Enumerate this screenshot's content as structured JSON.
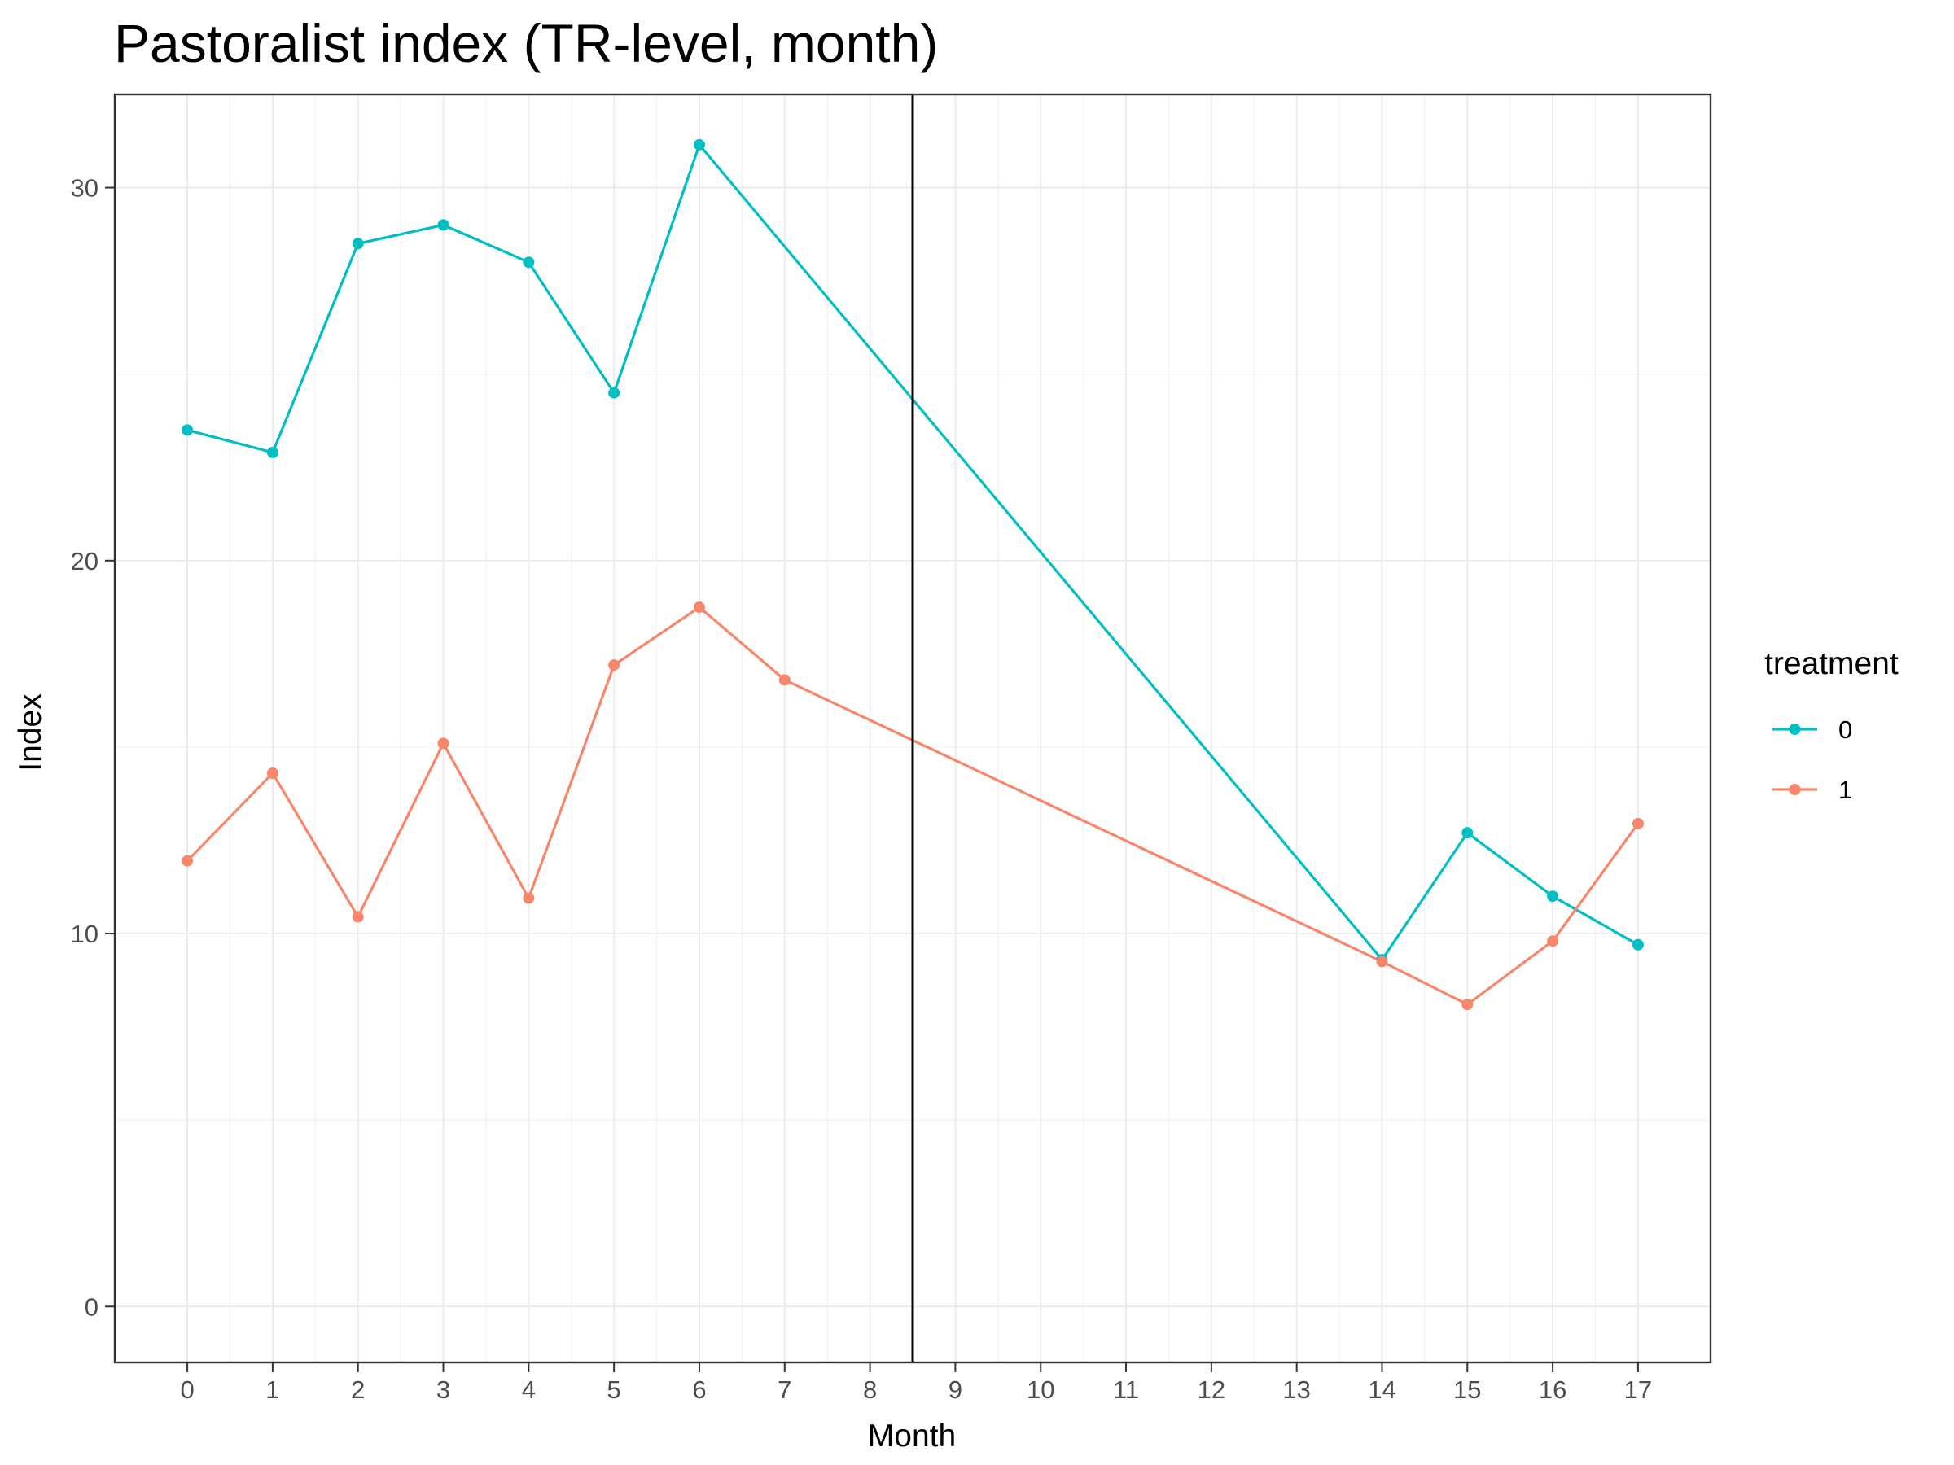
{
  "chart_data": {
    "type": "line",
    "title": "Pastoralist index (TR-level, month)",
    "xlabel": "Month",
    "ylabel": "Index",
    "x_ticks": [
      0,
      1,
      2,
      3,
      4,
      5,
      6,
      7,
      8,
      9,
      10,
      11,
      12,
      13,
      14,
      15,
      16,
      17
    ],
    "y_ticks": [
      0,
      10,
      20,
      30
    ],
    "xlim": [
      -0.85,
      17.85
    ],
    "ylim": [
      -1.5,
      32.5
    ],
    "grid": true,
    "vline_x": 8.5,
    "legend": {
      "title": "treatment",
      "position": "right"
    },
    "series": [
      {
        "name": "0",
        "color": "#00BFC4",
        "points": [
          [
            0,
            23.5
          ],
          [
            1,
            22.9
          ],
          [
            2,
            28.5
          ],
          [
            3,
            29.0
          ],
          [
            4,
            28.0
          ],
          [
            5,
            24.5
          ],
          [
            6,
            31.15
          ],
          [
            14,
            9.3
          ],
          [
            15,
            12.7
          ],
          [
            16,
            11.0
          ],
          [
            17,
            9.7
          ]
        ]
      },
      {
        "name": "1",
        "color": "#F8866B",
        "points": [
          [
            0,
            11.95
          ],
          [
            1,
            14.3
          ],
          [
            2,
            10.45
          ],
          [
            3,
            15.1
          ],
          [
            4,
            10.95
          ],
          [
            5,
            17.2
          ],
          [
            6,
            18.75
          ],
          [
            7,
            16.8
          ],
          [
            14,
            9.25
          ],
          [
            15,
            8.1
          ],
          [
            16,
            9.8
          ],
          [
            17,
            12.95
          ]
        ]
      }
    ]
  }
}
